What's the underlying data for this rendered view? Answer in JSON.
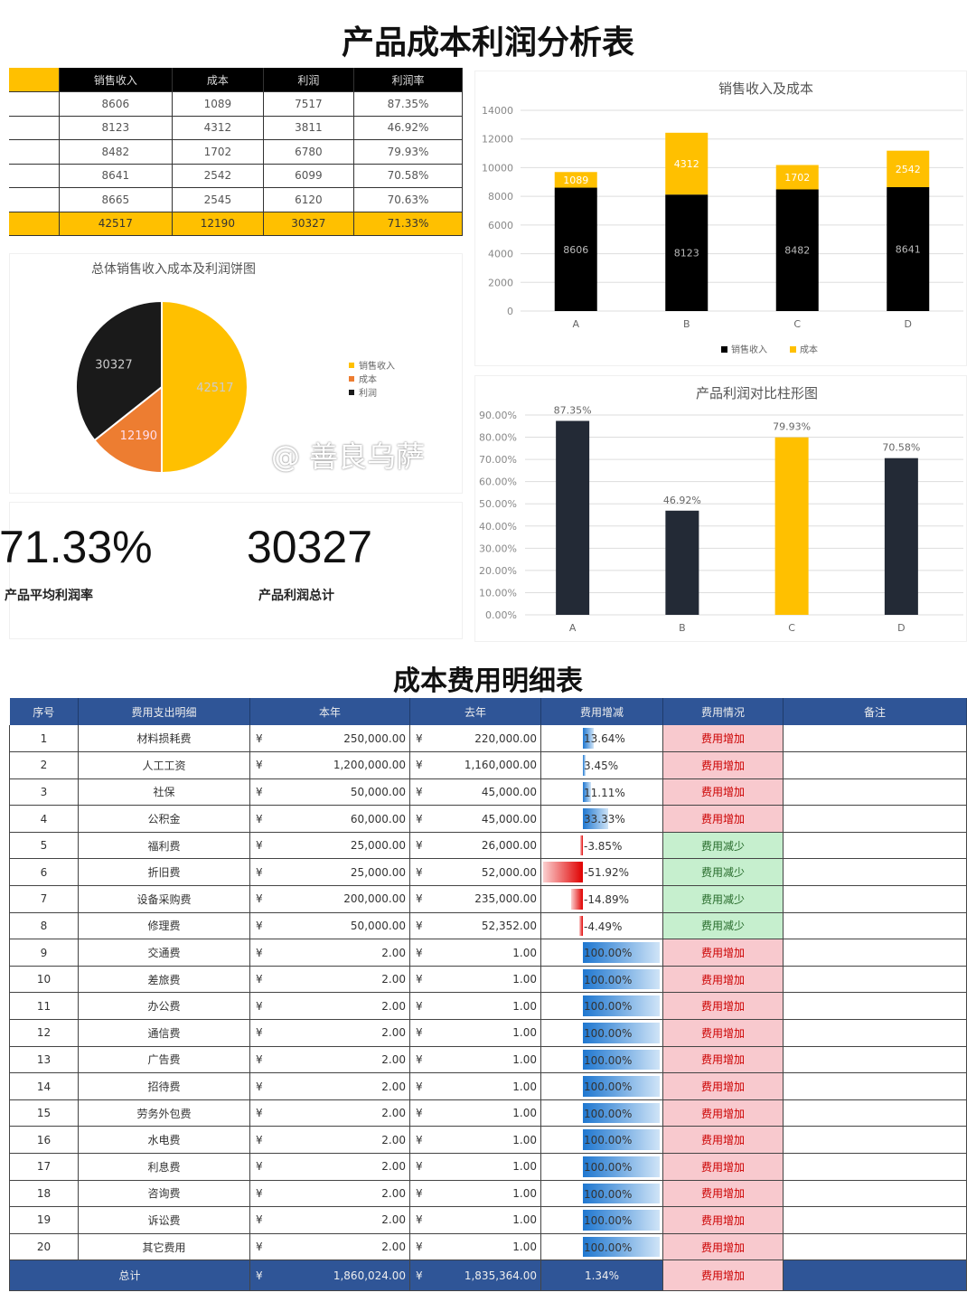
{
  "title": "产品成本利润分析表",
  "summary_table": {
    "headers": [
      "",
      "销售收入",
      "成本",
      "利润",
      "利润率"
    ],
    "rows": [
      [
        "",
        "8606",
        "1089",
        "7517",
        "87.35%"
      ],
      [
        "",
        "8123",
        "4312",
        "3811",
        "46.92%"
      ],
      [
        "",
        "8482",
        "1702",
        "6780",
        "79.93%"
      ],
      [
        "",
        "8641",
        "2542",
        "6099",
        "70.58%"
      ],
      [
        "",
        "8665",
        "2545",
        "6120",
        "70.63%"
      ]
    ],
    "total": [
      "",
      "42517",
      "12190",
      "30327",
      "71.33%"
    ]
  },
  "chart_data": [
    {
      "type": "pie",
      "title": "总体销售收入成本及利润饼图",
      "categories": [
        "销售收入",
        "成本",
        "利润"
      ],
      "values": [
        42517,
        12190,
        30327
      ],
      "colors": [
        "#ffc000",
        "#ed7d31",
        "#1a1a1a"
      ],
      "legend": "right"
    },
    {
      "type": "bar",
      "stacked": true,
      "title": "销售收入及成本",
      "categories": [
        "A",
        "B",
        "C",
        "D"
      ],
      "series": [
        {
          "name": "销售收入",
          "values": [
            8606,
            8123,
            8482,
            8641
          ],
          "color": "#000000"
        },
        {
          "name": "成本",
          "values": [
            1089,
            4312,
            1702,
            2542
          ],
          "color": "#ffc000"
        }
      ],
      "ylim": [
        0,
        14000
      ],
      "yticks": [
        0,
        2000,
        4000,
        6000,
        8000,
        10000,
        12000,
        14000
      ],
      "legend": "bottom",
      "grid": true
    },
    {
      "type": "bar",
      "title": "产品利润对比柱形图",
      "categories": [
        "A",
        "B",
        "C",
        "D"
      ],
      "values": [
        87.35,
        46.92,
        79.93,
        70.58
      ],
      "labels": [
        "87.35%",
        "46.92%",
        "79.93%",
        "70.58%"
      ],
      "colors": [
        "#232a36",
        "#232a36",
        "#ffc000",
        "#232a36"
      ],
      "ylim": [
        0,
        90
      ],
      "yticks": [
        "0.00%",
        "10.00%",
        "20.00%",
        "30.00%",
        "40.00%",
        "50.00%",
        "60.00%",
        "70.00%",
        "80.00%",
        "90.00%"
      ],
      "grid": true
    }
  ],
  "kpi": {
    "avg_rate": "71.33%",
    "avg_rate_label": "产品平均利润率",
    "total_profit": "30327",
    "total_profit_label": "产品利润总计"
  },
  "watermark": "@ 善良乌萨",
  "detail": {
    "title": "成本费用明细表",
    "headers": [
      "序号",
      "费用支出明细",
      "本年",
      "去年",
      "费用增减",
      "费用情况",
      "备注"
    ],
    "currency": "¥",
    "rows": [
      [
        "1",
        "材料损耗费",
        "250,000.00",
        "220,000.00",
        13.64,
        "13.64%",
        "费用增加"
      ],
      [
        "2",
        "人工工资",
        "1,200,000.00",
        "1,160,000.00",
        3.45,
        "3.45%",
        "费用增加"
      ],
      [
        "3",
        "社保",
        "50,000.00",
        "45,000.00",
        11.11,
        "11.11%",
        "费用增加"
      ],
      [
        "4",
        "公积金",
        "60,000.00",
        "45,000.00",
        33.33,
        "33.33%",
        "费用增加"
      ],
      [
        "5",
        "福利费",
        "25,000.00",
        "26,000.00",
        -3.85,
        "-3.85%",
        "费用减少"
      ],
      [
        "6",
        "折旧费",
        "25,000.00",
        "52,000.00",
        -51.92,
        "-51.92%",
        "费用减少"
      ],
      [
        "7",
        "设备采购费",
        "200,000.00",
        "235,000.00",
        -14.89,
        "-14.89%",
        "费用减少"
      ],
      [
        "8",
        "修理费",
        "50,000.00",
        "52,352.00",
        -4.49,
        "-4.49%",
        "费用减少"
      ],
      [
        "9",
        "交通费",
        "2.00",
        "1.00",
        100,
        "100.00%",
        "费用增加"
      ],
      [
        "10",
        "差旅费",
        "2.00",
        "1.00",
        100,
        "100.00%",
        "费用增加"
      ],
      [
        "11",
        "办公费",
        "2.00",
        "1.00",
        100,
        "100.00%",
        "费用增加"
      ],
      [
        "12",
        "通信费",
        "2.00",
        "1.00",
        100,
        "100.00%",
        "费用增加"
      ],
      [
        "13",
        "广告费",
        "2.00",
        "1.00",
        100,
        "100.00%",
        "费用增加"
      ],
      [
        "14",
        "招待费",
        "2.00",
        "1.00",
        100,
        "100.00%",
        "费用增加"
      ],
      [
        "15",
        "劳务外包费",
        "2.00",
        "1.00",
        100,
        "100.00%",
        "费用增加"
      ],
      [
        "16",
        "水电费",
        "2.00",
        "1.00",
        100,
        "100.00%",
        "费用增加"
      ],
      [
        "17",
        "利息费",
        "2.00",
        "1.00",
        100,
        "100.00%",
        "费用增加"
      ],
      [
        "18",
        "咨询费",
        "2.00",
        "1.00",
        100,
        "100.00%",
        "费用增加"
      ],
      [
        "19",
        "诉讼费",
        "2.00",
        "1.00",
        100,
        "100.00%",
        "费用增加"
      ],
      [
        "20",
        "其它费用",
        "2.00",
        "1.00",
        100,
        "100.00%",
        "费用增加"
      ]
    ],
    "total": [
      "总计",
      "1,860,024.00",
      "1,835,364.00",
      "1.34%",
      "费用增加"
    ]
  }
}
